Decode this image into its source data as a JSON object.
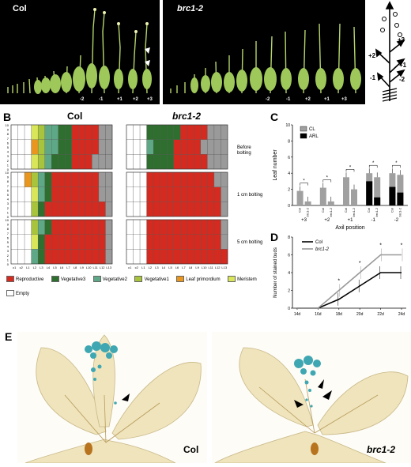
{
  "panelA": {
    "label": "A",
    "left_title": "Col",
    "right_title": "brc1-2",
    "left_axil_labels": [
      "-2",
      "-1",
      "+1",
      "+2",
      "+3"
    ],
    "right_axil_labels": [
      "-2",
      "-1",
      "+2",
      "+1",
      "+3"
    ],
    "schematic_labels": [
      "+3",
      "+2",
      "+1",
      "-1",
      "-2"
    ]
  },
  "panelB": {
    "label": "B",
    "col_title": "Col",
    "mut_title": "brc1-2",
    "row_labels": [
      "Before bolting",
      "1 cm bolting",
      "5 cm bolting"
    ],
    "y_ticks": [
      "10",
      "9",
      "8",
      "7",
      "6",
      "5",
      "4",
      "3",
      "2",
      "1",
      "0"
    ],
    "x_ticks": [
      "c1",
      "c2",
      "L1",
      "L2",
      "L3",
      "L4",
      "L5",
      "L6",
      "L7",
      "L8",
      "L9",
      "L10",
      "L11",
      "L12",
      "L13"
    ],
    "legend": [
      {
        "name": "Reproductive",
        "color": "#d42a1f"
      },
      {
        "name": "Vegetative3",
        "color": "#2e6e2e"
      },
      {
        "name": "Vegetative2",
        "color": "#5fa887"
      },
      {
        "name": "Vegetative1",
        "color": "#a8c43c"
      },
      {
        "name": "Leaf primordium",
        "color": "#e8961e"
      },
      {
        "name": "Meristem",
        "color": "#d9e65a"
      },
      {
        "name": "Empty",
        "color": "#ffffff"
      }
    ],
    "grids": {
      "col_before": [
        [
          "W",
          "W",
          "W",
          "M",
          "V1",
          "V2",
          "V2",
          "V3",
          "V3",
          "R",
          "R",
          "R",
          "R",
          "G",
          "G"
        ],
        [
          "W",
          "W",
          "W",
          "L",
          "V1",
          "V2",
          "V2",
          "V3",
          "V3",
          "R",
          "R",
          "R",
          "R",
          "G",
          "G"
        ],
        [
          "W",
          "W",
          "W",
          "M",
          "V1",
          "V2",
          "V3",
          "V3",
          "V3",
          "R",
          "R",
          "R",
          "G",
          "G",
          "G"
        ]
      ],
      "mut_before": [
        [
          "W",
          "W",
          "W",
          "V3",
          "V3",
          "V3",
          "V3",
          "V3",
          "R",
          "R",
          "R",
          "R",
          "G",
          "G",
          "G"
        ],
        [
          "W",
          "W",
          "W",
          "V2",
          "V3",
          "V3",
          "V3",
          "R",
          "R",
          "R",
          "R",
          "G",
          "G",
          "G",
          "G"
        ],
        [
          "W",
          "W",
          "W",
          "V3",
          "V3",
          "V3",
          "V3",
          "R",
          "R",
          "R",
          "R",
          "R",
          "G",
          "G",
          "G"
        ]
      ],
      "col_1cm": [
        [
          "W",
          "W",
          "L",
          "V1",
          "V2",
          "V3",
          "R",
          "R",
          "R",
          "R",
          "R",
          "R",
          "R",
          "G",
          "G"
        ],
        [
          "W",
          "W",
          "W",
          "M",
          "V2",
          "V3",
          "R",
          "R",
          "R",
          "R",
          "R",
          "R",
          "R",
          "G",
          "G"
        ],
        [
          "W",
          "W",
          "W",
          "V1",
          "V3",
          "R",
          "R",
          "R",
          "R",
          "R",
          "R",
          "R",
          "R",
          "R",
          "G"
        ]
      ],
      "mut_1cm": [
        [
          "W",
          "W",
          "W",
          "R",
          "R",
          "R",
          "R",
          "R",
          "R",
          "R",
          "R",
          "R",
          "R",
          "G",
          "G"
        ],
        [
          "W",
          "W",
          "W",
          "R",
          "R",
          "R",
          "R",
          "R",
          "R",
          "R",
          "R",
          "R",
          "R",
          "R",
          "G"
        ],
        [
          "W",
          "W",
          "W",
          "R",
          "R",
          "R",
          "R",
          "R",
          "R",
          "R",
          "R",
          "R",
          "R",
          "R",
          "G"
        ]
      ],
      "col_5cm": [
        [
          "W",
          "W",
          "W",
          "V1",
          "V2",
          "V3",
          "R",
          "R",
          "R",
          "R",
          "R",
          "R",
          "R",
          "R",
          "G"
        ],
        [
          "W",
          "W",
          "W",
          "M",
          "V3",
          "R",
          "R",
          "R",
          "R",
          "R",
          "R",
          "R",
          "R",
          "R",
          "G"
        ],
        [
          "W",
          "W",
          "W",
          "V2",
          "V3",
          "R",
          "R",
          "R",
          "R",
          "R",
          "R",
          "R",
          "R",
          "R",
          "G"
        ]
      ],
      "mut_5cm": [
        [
          "W",
          "W",
          "W",
          "R",
          "R",
          "R",
          "R",
          "R",
          "R",
          "R",
          "R",
          "R",
          "R",
          "R",
          "G"
        ],
        [
          "W",
          "W",
          "W",
          "R",
          "R",
          "R",
          "R",
          "R",
          "R",
          "R",
          "R",
          "R",
          "R",
          "R",
          "G"
        ],
        [
          "W",
          "W",
          "W",
          "R",
          "R",
          "R",
          "R",
          "R",
          "R",
          "R",
          "R",
          "R",
          "R",
          "R",
          "R"
        ]
      ]
    }
  },
  "chart_data": [
    {
      "type": "bar",
      "panel": "C",
      "ylabel": "Leaf number",
      "xlabel": "Axil position",
      "ylim": [
        0,
        10
      ],
      "yticks": [
        0,
        2,
        4,
        6,
        8,
        10
      ],
      "categories": [
        "+3",
        "+2",
        "+1",
        "-1",
        "-2"
      ],
      "bar_labels": [
        "Col",
        "brc1-2"
      ],
      "legend": [
        {
          "name": "CL",
          "color": "#a0a0a0"
        },
        {
          "name": "ARL",
          "color": "#000000"
        }
      ],
      "series": [
        {
          "name": "CL",
          "values": [
            [
              1.8,
              0.5
            ],
            [
              2.2,
              0.5
            ],
            [
              3.5,
              2.0
            ],
            [
              4.0,
              3.5
            ],
            [
              4.0,
              3.8
            ]
          ]
        },
        {
          "name": "ARL",
          "values": [
            [
              0,
              0
            ],
            [
              0,
              0
            ],
            [
              0,
              0
            ],
            [
              3.0,
              1.0
            ],
            [
              2.3,
              1.6
            ]
          ]
        }
      ],
      "significance": "*"
    },
    {
      "type": "line",
      "panel": "D",
      "ylabel": "Number of stained buds",
      "ylim": [
        0,
        8
      ],
      "yticks": [
        0,
        2,
        4,
        6,
        8
      ],
      "x": [
        "14d",
        "16d",
        "18d",
        "20d",
        "22d",
        "24d"
      ],
      "series": [
        {
          "name": "Col",
          "color": "#000000",
          "values": [
            0,
            0,
            1.0,
            2.5,
            4.0,
            4.0
          ]
        },
        {
          "name": "brc1-2",
          "color": "#999999",
          "values": [
            0,
            0,
            2.0,
            4.0,
            6.0,
            6.0
          ]
        }
      ],
      "significance": "*"
    }
  ],
  "panelE": {
    "label": "E",
    "left_title": "Col",
    "right_title": "brc1-2"
  }
}
